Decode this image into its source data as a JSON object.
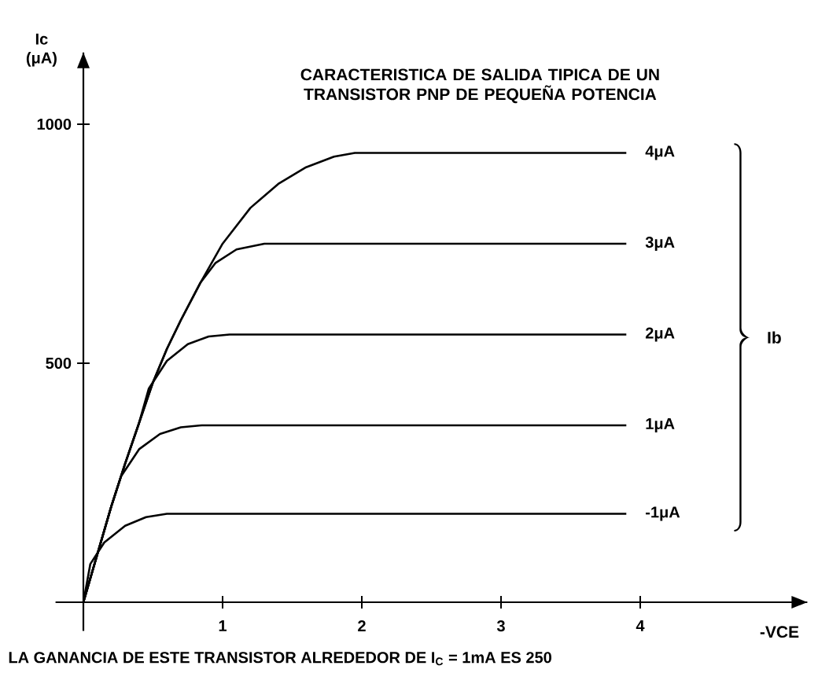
{
  "chart_data": {
    "type": "line",
    "title": "CARACTERISTICA DE SALIDA TIPICA DE UN TRANSISTOR PNP DE PEQUEÑA POTENCIA",
    "ylabel": "Ic (μA)",
    "xlabel": "-VCE",
    "legend_title": "Ib",
    "annotations": [
      "LA GANANCIA DE ESTE TRANSISTOR ALREDEDOR DE I$_{C}$ = 1mA ES 250"
    ],
    "xlim": [
      -0.2,
      5.2
    ],
    "ylim": [
      -60,
      1150
    ],
    "xticks": [
      1,
      2,
      3,
      4
    ],
    "yticks": [
      500,
      1000
    ],
    "legend": false,
    "grid": false,
    "marker": "none",
    "line_style": "solid",
    "series": [
      {
        "name": "4μA",
        "color": "#000000",
        "x": [
          0,
          0.1,
          0.2,
          0.3,
          0.4,
          0.5,
          0.6,
          0.7,
          0.84,
          1.0,
          1.2,
          1.4,
          1.6,
          1.8,
          1.95,
          3.9
        ],
        "values": [
          0,
          100,
          200,
          290,
          375,
          460,
          530,
          590,
          668,
          750,
          825,
          875,
          910,
          932,
          940,
          940
        ]
      },
      {
        "name": "3μA",
        "color": "#000000",
        "x": [
          0,
          0.1,
          0.2,
          0.3,
          0.4,
          0.5,
          0.6,
          0.7,
          0.84,
          0.95,
          1.1,
          1.3,
          3.9
        ],
        "values": [
          0,
          100,
          200,
          290,
          375,
          460,
          530,
          590,
          668,
          710,
          738,
          750,
          750
        ]
      },
      {
        "name": "2μA",
        "color": "#000000",
        "x": [
          0,
          0.1,
          0.2,
          0.3,
          0.4,
          0.47,
          0.6,
          0.75,
          0.9,
          1.05,
          3.9
        ],
        "values": [
          0,
          100,
          200,
          290,
          375,
          447,
          505,
          540,
          556,
          560,
          560
        ]
      },
      {
        "name": "1μA",
        "color": "#000000",
        "x": [
          0,
          0.1,
          0.2,
          0.27,
          0.4,
          0.55,
          0.7,
          0.85,
          3.9
        ],
        "values": [
          0,
          100,
          200,
          263,
          320,
          352,
          366,
          370,
          370
        ]
      },
      {
        "name": "-1μA",
        "color": "#000000",
        "x": [
          0,
          0.05,
          0.15,
          0.3,
          0.45,
          0.6,
          0.7,
          3.9
        ],
        "values": [
          0,
          80,
          125,
          160,
          178,
          185,
          185,
          185
        ]
      }
    ]
  }
}
